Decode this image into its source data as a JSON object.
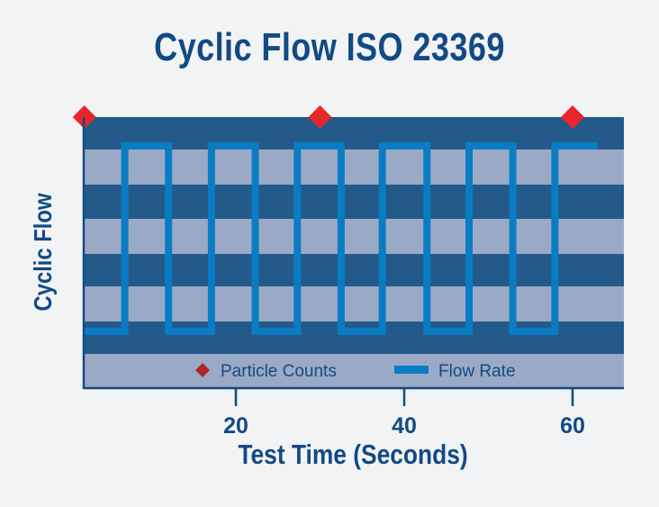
{
  "chart_data": {
    "type": "line",
    "title": "Cyclic Flow ISO 23369",
    "xlabel": "Test Time (Seconds)",
    "ylabel": "Cyclic Flow",
    "xlim": [
      2,
      66
    ],
    "x_ticks": [
      20,
      40,
      60
    ],
    "grid": "horizontal alternating bands",
    "legend_placement": "bottom inside",
    "series": [
      {
        "name": "Flow Rate",
        "kind": "square-wave",
        "color": "#0a7cc4",
        "levels": {
          "low": 0,
          "high": 1
        },
        "start": {
          "x": 2,
          "level": 0
        },
        "transitions": [
          6.8,
          12.0,
          17.1,
          22.3,
          27.3,
          32.5,
          37.4,
          42.7,
          47.7,
          52.9,
          57.9
        ],
        "end_x": 63
      },
      {
        "name": "Particle Counts",
        "kind": "marker",
        "marker": "diamond",
        "color": "#e8262b",
        "x": [
          2,
          30,
          60
        ]
      }
    ],
    "legend": [
      {
        "label": "Particle Counts",
        "marker": "diamond",
        "color": "#b3262a"
      },
      {
        "label": "Flow Rate",
        "marker": "line",
        "color": "#0a7cc4"
      }
    ],
    "colors": {
      "band_dark": "#245a8a",
      "band_light": "#9aa9c5",
      "text": "#124a84",
      "background": "#f2f3f5"
    }
  }
}
